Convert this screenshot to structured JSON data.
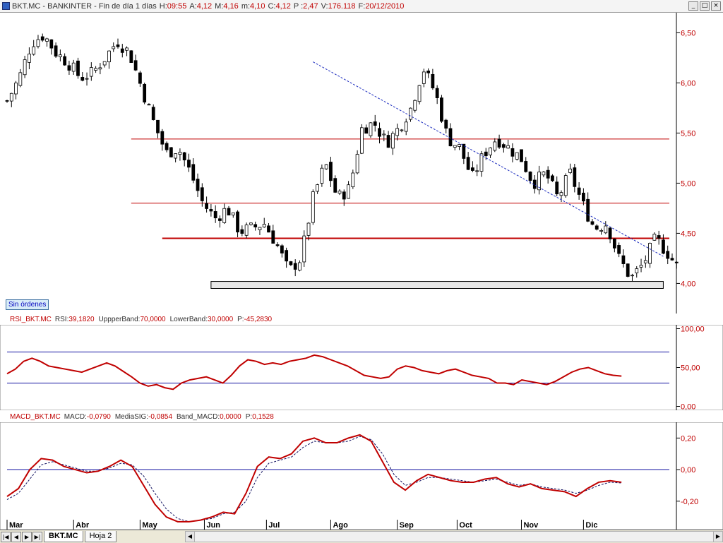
{
  "title_bar": {
    "symbol_name": "BKT.MC - BANKINTER - Fin de día 1 días",
    "fields": [
      {
        "label": "H:",
        "value": "09:55"
      },
      {
        "label": "A:",
        "value": "4,12"
      },
      {
        "label": "M:",
        "value": "4,16"
      },
      {
        "label": "m:",
        "value": "4,10"
      },
      {
        "label": "C:",
        "value": "4,12"
      },
      {
        "label": "P :",
        "value": "2,47"
      },
      {
        "label": "V:",
        "value": "176.118"
      },
      {
        "label": "F:",
        "value": "20/12/2010"
      }
    ],
    "buttons": {
      "minimize": "_",
      "restore": "□",
      "close": "×"
    }
  },
  "orders_label": "Sin órdenes",
  "rsi_header": {
    "name": "RSI_BKT.MC",
    "fields": [
      {
        "label": "RSI:",
        "value": "39,1820"
      },
      {
        "label": "UppperBand:",
        "value": "70,0000"
      },
      {
        "label": "LowerBand:",
        "value": "30,0000"
      },
      {
        "label": "P:",
        "value": "-45,2830"
      }
    ]
  },
  "macd_header": {
    "name": "MACD_BKT.MC",
    "fields": [
      {
        "label": "MACD:",
        "value": "-0,0790"
      },
      {
        "label": "MediaSIG:",
        "value": "-0,0854"
      },
      {
        "label": "Band_MACD:",
        "value": "0,0000"
      },
      {
        "label": "P:",
        "value": "0,1528"
      }
    ]
  },
  "sheet_tabs": [
    {
      "label": "BKT.MC",
      "active": true
    },
    {
      "label": "Hoja 2",
      "active": false
    }
  ],
  "nav_buttons": [
    "|◀",
    "◀",
    "▶",
    "▶|"
  ],
  "colors": {
    "price_axis": "#c00000",
    "candle": "#000000",
    "horizontal_lines": "#c00000",
    "trendline": "#2030c0",
    "rsi_line": "#c00000",
    "band_lines": "#1010a0",
    "macd_line": "#c00000",
    "signal_line": "#101060"
  },
  "chart_data": [
    {
      "type": "candlestick",
      "name": "BKT.MC",
      "x_labels": [
        "Mar",
        "Abr",
        "May",
        "Jun",
        "Jul",
        "Ago",
        "Sep",
        "Oct",
        "Nov",
        "Dic"
      ],
      "ylim": [
        3.7,
        6.7
      ],
      "yticks": [
        4.0,
        4.5,
        5.0,
        5.5,
        6.0,
        6.5
      ],
      "ytick_labels": [
        "4,00",
        "4,50",
        "5,00",
        "5,50",
        "6,00",
        "6,50"
      ],
      "close_path": [
        [
          0,
          5.82
        ],
        [
          2,
          6.05
        ],
        [
          4,
          6.4
        ],
        [
          6,
          6.48
        ],
        [
          8,
          6.3
        ],
        [
          10,
          6.2
        ],
        [
          12,
          6.05
        ],
        [
          14,
          6.1
        ],
        [
          16,
          6.25
        ],
        [
          18,
          6.42
        ],
        [
          20,
          6.3
        ],
        [
          22,
          5.95
        ],
        [
          24,
          5.6
        ],
        [
          26,
          5.3
        ],
        [
          28,
          5.35
        ],
        [
          30,
          5.1
        ],
        [
          32,
          4.8
        ],
        [
          34,
          4.65
        ],
        [
          36,
          4.75
        ],
        [
          38,
          4.52
        ],
        [
          40,
          4.55
        ],
        [
          42,
          4.6
        ],
        [
          44,
          4.4
        ],
        [
          46,
          4.12
        ],
        [
          48,
          4.25
        ],
        [
          50,
          4.85
        ],
        [
          52,
          5.2
        ],
        [
          54,
          4.85
        ],
        [
          56,
          4.95
        ],
        [
          58,
          5.55
        ],
        [
          60,
          5.6
        ],
        [
          62,
          5.4
        ],
        [
          64,
          5.55
        ],
        [
          66,
          5.75
        ],
        [
          68,
          6.15
        ],
        [
          70,
          5.9
        ],
        [
          72,
          5.45
        ],
        [
          74,
          5.35
        ],
        [
          76,
          5.05
        ],
        [
          78,
          5.3
        ],
        [
          80,
          5.45
        ],
        [
          82,
          5.35
        ],
        [
          84,
          5.25
        ],
        [
          86,
          5.0
        ],
        [
          88,
          5.1
        ],
        [
          90,
          4.85
        ],
        [
          92,
          5.1
        ],
        [
          94,
          4.8
        ],
        [
          96,
          4.55
        ],
        [
          98,
          4.6
        ],
        [
          100,
          4.25
        ],
        [
          102,
          4.05
        ],
        [
          104,
          4.2
        ],
        [
          106,
          4.45
        ],
        [
          108,
          4.3
        ],
        [
          110,
          4.12
        ]
      ],
      "horizontal_lines": [
        5.44,
        4.8,
        4.45
      ],
      "support_zone": [
        3.95,
        4.02
      ],
      "support_zone_range": [
        46,
        148
      ],
      "trendline": [
        [
          69,
          6.21
        ],
        [
          148,
          4.27
        ]
      ]
    },
    {
      "type": "line",
      "name": "RSI",
      "ylim": [
        -5,
        105
      ],
      "yticks": [
        0,
        50,
        100
      ],
      "ytick_labels": [
        "0,00",
        "50,00",
        "100,00"
      ],
      "bands": [
        70,
        30
      ],
      "values": [
        42,
        48,
        58,
        62,
        58,
        52,
        50,
        48,
        46,
        44,
        48,
        52,
        56,
        52,
        45,
        38,
        30,
        26,
        28,
        24,
        22,
        30,
        34,
        36,
        38,
        34,
        30,
        40,
        52,
        60,
        58,
        54,
        56,
        54,
        58,
        60,
        62,
        66,
        64,
        60,
        56,
        52,
        46,
        40,
        38,
        36,
        38,
        48,
        52,
        50,
        46,
        44,
        42,
        46,
        48,
        44,
        40,
        38,
        36,
        30,
        30,
        28,
        34,
        32,
        30,
        28,
        32,
        38,
        44,
        48,
        50,
        46,
        42,
        40,
        39
      ]
    },
    {
      "type": "line",
      "name": "MACD",
      "ylim": [
        -0.38,
        0.3
      ],
      "yticks": [
        -0.2,
        0,
        0.2
      ],
      "ytick_labels": [
        "-0,20",
        "0,00",
        "0,20"
      ],
      "zero_line": 0,
      "macd": [
        -0.17,
        -0.12,
        0.0,
        0.07,
        0.06,
        0.02,
        0.0,
        -0.02,
        -0.01,
        0.02,
        0.06,
        0.02,
        -0.1,
        -0.22,
        -0.3,
        -0.33,
        -0.33,
        -0.32,
        -0.3,
        -0.27,
        -0.28,
        -0.15,
        0.02,
        0.08,
        0.07,
        0.1,
        0.18,
        0.2,
        0.17,
        0.17,
        0.2,
        0.22,
        0.18,
        0.05,
        -0.08,
        -0.13,
        -0.07,
        -0.03,
        -0.05,
        -0.07,
        -0.08,
        -0.08,
        -0.06,
        -0.05,
        -0.09,
        -0.11,
        -0.09,
        -0.12,
        -0.13,
        -0.14,
        -0.17,
        -0.12,
        -0.08,
        -0.07,
        -0.08
      ],
      "signal": [
        -0.19,
        -0.15,
        -0.06,
        0.03,
        0.05,
        0.03,
        0.01,
        -0.01,
        -0.01,
        0.01,
        0.04,
        0.03,
        -0.04,
        -0.15,
        -0.25,
        -0.31,
        -0.33,
        -0.32,
        -0.31,
        -0.28,
        -0.27,
        -0.2,
        -0.05,
        0.04,
        0.06,
        0.08,
        0.14,
        0.18,
        0.17,
        0.17,
        0.18,
        0.21,
        0.19,
        0.1,
        -0.03,
        -0.1,
        -0.08,
        -0.05,
        -0.05,
        -0.06,
        -0.07,
        -0.08,
        -0.07,
        -0.06,
        -0.08,
        -0.1,
        -0.09,
        -0.11,
        -0.12,
        -0.13,
        -0.15,
        -0.13,
        -0.1,
        -0.08,
        -0.085
      ]
    }
  ]
}
